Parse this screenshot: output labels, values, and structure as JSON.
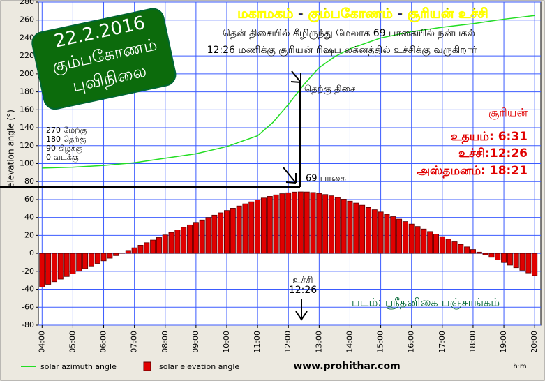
{
  "chart_data": {
    "type": "bar",
    "title": "மகாமகம் - கும்பகோணம் - சூரியன் உச்சி",
    "subtitle": [
      "தென் திசையில் கீழிருந்து மேலாக 69 பாகையில் நன்பகல்",
      "12:26 மணிக்கு சூரியன் ரிஷப லக்னத்தில் உச்சிக்கு வருகிறார்"
    ],
    "badge": [
      "22.2.2016",
      "கும்பகோணம்",
      "புவிநிலை"
    ],
    "direction_note": [
      "270 மேற்கு",
      "180 தெற்கு",
      "90 கிழக்கு",
      "0 வடக்கு"
    ],
    "sun_box": [
      "சூரியன்",
      "உதயம்: 6:31",
      "உச்சி:12:26",
      "அஸ்தமனம்: 18:21"
    ],
    "annotations": [
      "தெற்கு திசை",
      "69 பாகை",
      "உச்சி",
      "12:26",
      "படம்: ஸ்ரீதனிகை பஞ்சாங்கம்"
    ],
    "website": "www.prohithar.com",
    "x_label": "h·m",
    "y_label": "elevation angle (°)",
    "xlim": [
      3.88,
      20.2
    ],
    "xticks": [
      {
        "value": 4,
        "label": "04:00"
      },
      {
        "value": 5,
        "label": "05:00"
      },
      {
        "value": 6,
        "label": "06:00"
      },
      {
        "value": 7,
        "label": "07:00"
      },
      {
        "value": 8,
        "label": "08:00"
      },
      {
        "value": 9,
        "label": "09:00"
      },
      {
        "value": 10,
        "label": "10:00"
      },
      {
        "value": 11,
        "label": "11:00"
      },
      {
        "value": 12,
        "label": "12:00"
      },
      {
        "value": 13,
        "label": "13:00"
      },
      {
        "value": 14,
        "label": "14:00"
      },
      {
        "value": 15,
        "label": "15:00"
      },
      {
        "value": 16,
        "label": "16:00"
      },
      {
        "value": 17,
        "label": "17:00"
      },
      {
        "value": 18,
        "label": "18:00"
      },
      {
        "value": 19,
        "label": "19:00"
      },
      {
        "value": 20,
        "label": "20:00"
      }
    ],
    "ylim": [
      -80,
      280
    ],
    "yticks": [
      -80,
      -60,
      -40,
      -20,
      0,
      20,
      40,
      60,
      80,
      100,
      120,
      140,
      160,
      180,
      200,
      220,
      240,
      260,
      280
    ],
    "grid": true,
    "series": [
      {
        "name": "solar azimuth angle",
        "type": "line",
        "color": "#22dd22",
        "x": [
          4,
          5,
          6,
          7,
          8,
          9,
          10,
          11,
          11.5,
          12,
          12.5,
          13,
          13.5,
          14,
          15,
          16,
          17,
          18,
          19,
          20
        ],
        "values": [
          95,
          96,
          98,
          101,
          106,
          111,
          119,
          131,
          146,
          166,
          188,
          207,
          219,
          228,
          240,
          247,
          252,
          256,
          261,
          265
        ]
      },
      {
        "name": "solar elevation angle",
        "type": "bar",
        "color": "#e00000",
        "x": [
          4,
          4.2,
          4.4,
          4.6,
          4.8,
          5,
          5.2,
          5.4,
          5.6,
          5.8,
          6,
          6.2,
          6.4,
          6.6,
          6.8,
          7,
          7.2,
          7.4,
          7.6,
          7.8,
          8,
          8.2,
          8.4,
          8.6,
          8.8,
          9,
          9.2,
          9.4,
          9.6,
          9.8,
          10,
          10.2,
          10.4,
          10.6,
          10.8,
          11,
          11.2,
          11.4,
          11.6,
          11.8,
          12,
          12.2,
          12.4,
          12.6,
          12.8,
          13,
          13.2,
          13.4,
          13.6,
          13.8,
          14,
          14.2,
          14.4,
          14.6,
          14.8,
          15,
          15.2,
          15.4,
          15.6,
          15.8,
          16,
          16.2,
          16.4,
          16.6,
          16.8,
          17,
          17.2,
          17.4,
          17.6,
          17.8,
          18,
          18.2,
          18.4,
          18.6,
          18.8,
          19,
          19.2,
          19.4,
          19.6,
          19.8,
          20
        ],
        "values": [
          -37.5,
          -34.5,
          -31.6,
          -28.7,
          -25.8,
          -22.8,
          -19.9,
          -17.0,
          -14.1,
          -11.2,
          -8.3,
          -5.4,
          -2.5,
          0.4,
          3.3,
          6.2,
          9.1,
          11.9,
          14.8,
          17.6,
          20.5,
          23.3,
          26.2,
          29.0,
          31.7,
          34.5,
          37.2,
          40.0,
          42.6,
          45.2,
          47.8,
          50.3,
          52.8,
          55.2,
          57.5,
          59.7,
          61.7,
          63.5,
          65.2,
          66.5,
          67.5,
          68.3,
          68.5,
          68.4,
          67.8,
          66.8,
          65.6,
          64.1,
          62.3,
          60.4,
          58.2,
          56.0,
          53.6,
          51.1,
          48.6,
          46.1,
          43.5,
          40.9,
          38.1,
          35.4,
          32.6,
          29.9,
          27.1,
          24.3,
          21.4,
          18.6,
          15.7,
          12.9,
          10.0,
          7.2,
          4.3,
          1.4,
          -1.5,
          -4.4,
          -7.3,
          -10.2,
          -13.1,
          -16.0,
          -18.9,
          -21.8,
          -24.8
        ]
      }
    ]
  }
}
